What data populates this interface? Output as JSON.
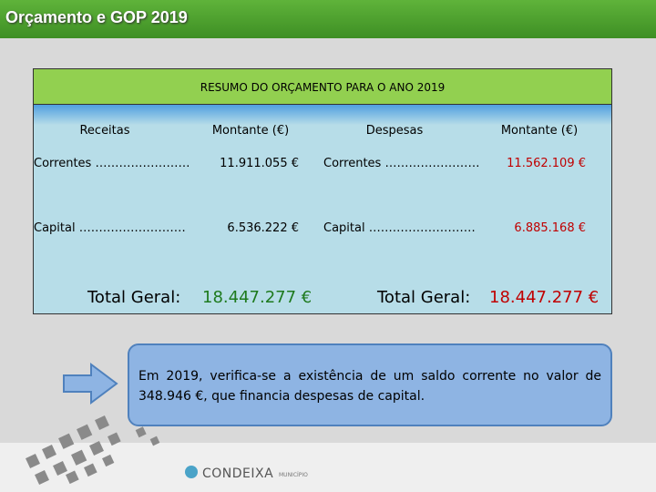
{
  "header": {
    "title": "Orçamento e GOP 2019"
  },
  "table": {
    "title": "RESUMO DO ORÇAMENTO PARA O ANO 2019",
    "columns": [
      "Receitas",
      "Montante (€)",
      "Despesas",
      "Montante (€)"
    ],
    "rows": [
      [
        "Correntes ……………………",
        "11.911.055 €",
        "Correntes ……………………",
        "11.562.109 €"
      ],
      [
        "Capital ………………………",
        "6.536.222 €",
        "Capital ………………………",
        "6.885.168 €"
      ]
    ],
    "totals": [
      "Total Geral:",
      "18.447.277 €",
      "Total Geral:",
      "18.447.277 €"
    ]
  },
  "note": "Em 2019, verifica-se a existência de um saldo corrente no valor de 348.946 €, que financia despesas de capital.",
  "logo": {
    "name": "CONDEIXA",
    "tagline": "MUNICÍPIO"
  }
}
